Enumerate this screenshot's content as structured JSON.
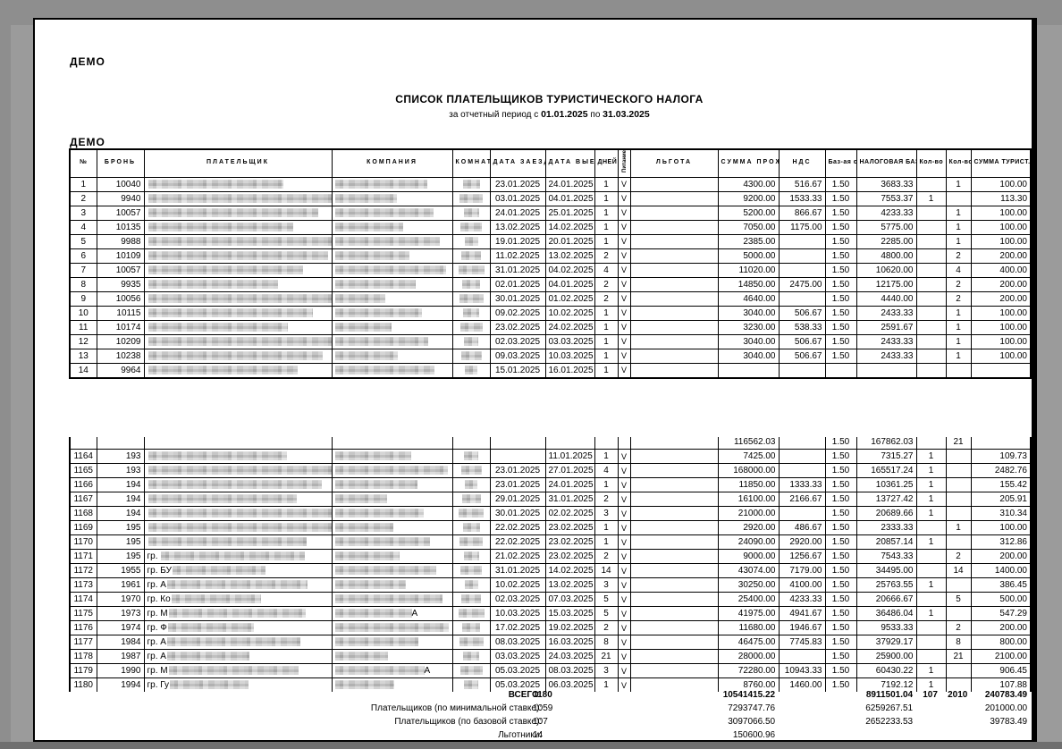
{
  "page": {
    "demo_top": "ДЕМО",
    "demo_table": "ДЕМО",
    "title": "СПИСОК ПЛАТЕЛЬЩИКОВ ТУРИСТИЧЕСКОГО НАЛОГА",
    "period_prefix": "за отчетный период с",
    "period_from": "01.01.2025",
    "period_mid": "по",
    "period_to": "31.03.2025"
  },
  "table": {
    "columns": [
      "№",
      "БРОНЬ",
      "ПЛАТЕЛЬЩИК",
      "КОМПАНИЯ",
      "КОМНАТА",
      "ДАТА\nЗАЕЗДА",
      "ДАТА\nВЫЕЗДА",
      "ДНЕЙ",
      "Питание",
      "ЛЬГОТА",
      "СУММА\nПРОЖИВАНИЯ",
      "НДС",
      "Баз-ая\nставка\n%",
      "НАЛОГОВАЯ\nБАЗА\n(без налогов)",
      "Кол-во\nпо баз.\nставке",
      "Кол-во\nпо мин\nставке",
      "СУММА\nТУРИСТ.\nНАЛОГА"
    ]
  },
  "rows_top": [
    {
      "n": "1",
      "bk": "10040",
      "pp": "",
      "cs": "",
      "in": "23.01.2025",
      "out": "24.01.2025",
      "d": "1",
      "m": "V",
      "ex": "",
      "stay": "4300.00",
      "vat": "516.67",
      "rate": "1.50",
      "base": "3683.33",
      "cb": "",
      "cm": "1",
      "tax": "100.00"
    },
    {
      "n": "2",
      "bk": "9940",
      "pp": "",
      "cs": "",
      "in": "03.01.2025",
      "out": "04.01.2025",
      "d": "1",
      "m": "V",
      "ex": "",
      "stay": "9200.00",
      "vat": "1533.33",
      "rate": "1.50",
      "base": "7553.37",
      "cb": "1",
      "cm": "",
      "tax": "113.30"
    },
    {
      "n": "3",
      "bk": "10057",
      "pp": "",
      "cs": "",
      "in": "24.01.2025",
      "out": "25.01.2025",
      "d": "1",
      "m": "V",
      "ex": "",
      "stay": "5200.00",
      "vat": "866.67",
      "rate": "1.50",
      "base": "4233.33",
      "cb": "",
      "cm": "1",
      "tax": "100.00"
    },
    {
      "n": "4",
      "bk": "10135",
      "pp": "",
      "cs": "",
      "in": "13.02.2025",
      "out": "14.02.2025",
      "d": "1",
      "m": "V",
      "ex": "",
      "stay": "7050.00",
      "vat": "1175.00",
      "rate": "1.50",
      "base": "5775.00",
      "cb": "",
      "cm": "1",
      "tax": "100.00"
    },
    {
      "n": "5",
      "bk": "9988",
      "pp": "",
      "cs": "",
      "in": "19.01.2025",
      "out": "20.01.2025",
      "d": "1",
      "m": "V",
      "ex": "",
      "stay": "2385.00",
      "vat": "",
      "rate": "1.50",
      "base": "2285.00",
      "cb": "",
      "cm": "1",
      "tax": "100.00"
    },
    {
      "n": "6",
      "bk": "10109",
      "pp": "",
      "cs": "",
      "in": "11.02.2025",
      "out": "13.02.2025",
      "d": "2",
      "m": "V",
      "ex": "",
      "stay": "5000.00",
      "vat": "",
      "rate": "1.50",
      "base": "4800.00",
      "cb": "",
      "cm": "2",
      "tax": "200.00"
    },
    {
      "n": "7",
      "bk": "10057",
      "pp": "",
      "cs": "",
      "in": "31.01.2025",
      "out": "04.02.2025",
      "d": "4",
      "m": "V",
      "ex": "",
      "stay": "11020.00",
      "vat": "",
      "rate": "1.50",
      "base": "10620.00",
      "cb": "",
      "cm": "4",
      "tax": "400.00"
    },
    {
      "n": "8",
      "bk": "9935",
      "pp": "",
      "cs": "",
      "in": "02.01.2025",
      "out": "04.01.2025",
      "d": "2",
      "m": "V",
      "ex": "",
      "stay": "14850.00",
      "vat": "2475.00",
      "rate": "1.50",
      "base": "12175.00",
      "cb": "",
      "cm": "2",
      "tax": "200.00"
    },
    {
      "n": "9",
      "bk": "10056",
      "pp": "",
      "cs": "",
      "in": "30.01.2025",
      "out": "01.02.2025",
      "d": "2",
      "m": "V",
      "ex": "",
      "stay": "4640.00",
      "vat": "",
      "rate": "1.50",
      "base": "4440.00",
      "cb": "",
      "cm": "2",
      "tax": "200.00"
    },
    {
      "n": "10",
      "bk": "10115",
      "pp": "",
      "cs": "",
      "in": "09.02.2025",
      "out": "10.02.2025",
      "d": "1",
      "m": "V",
      "ex": "",
      "stay": "3040.00",
      "vat": "506.67",
      "rate": "1.50",
      "base": "2433.33",
      "cb": "",
      "cm": "1",
      "tax": "100.00"
    },
    {
      "n": "11",
      "bk": "10174",
      "pp": "",
      "cs": "",
      "in": "23.02.2025",
      "out": "24.02.2025",
      "d": "1",
      "m": "V",
      "ex": "",
      "stay": "3230.00",
      "vat": "538.33",
      "rate": "1.50",
      "base": "2591.67",
      "cb": "",
      "cm": "1",
      "tax": "100.00"
    },
    {
      "n": "12",
      "bk": "10209",
      "pp": "",
      "cs": "",
      "in": "02.03.2025",
      "out": "03.03.2025",
      "d": "1",
      "m": "V",
      "ex": "",
      "stay": "3040.00",
      "vat": "506.67",
      "rate": "1.50",
      "base": "2433.33",
      "cb": "",
      "cm": "1",
      "tax": "100.00"
    },
    {
      "n": "13",
      "bk": "10238",
      "pp": "",
      "cs": "",
      "in": "09.03.2025",
      "out": "10.03.2025",
      "d": "1",
      "m": "V",
      "ex": "",
      "stay": "3040.00",
      "vat": "506.67",
      "rate": "1.50",
      "base": "2433.33",
      "cb": "",
      "cm": "1",
      "tax": "100.00"
    },
    {
      "n": "14",
      "bk": "9964",
      "pp": "",
      "cs": "",
      "in": "15.01.2025",
      "out": "16.01.2025",
      "d": "1",
      "m": "V",
      "ex": "",
      "stay": "",
      "vat": "",
      "rate": "",
      "base": "",
      "cb": "",
      "cm": "",
      "tax": ""
    }
  ],
  "partial_row": {
    "n": "",
    "bk": "",
    "pp": "",
    "cs": "",
    "in": "",
    "out": "",
    "d": "",
    "m": "",
    "ex": "",
    "stay": "116562.03",
    "vat": "",
    "rate": "1.50",
    "base": "167862.03",
    "cb": "",
    "cm": "21",
    "tax": "",
    "pr": false,
    "cr": false,
    "rr": false
  },
  "rows_bottom": [
    {
      "n": "1164",
      "bk": "193",
      "pp": "",
      "cs": "",
      "in": "",
      "out": "11.01.2025",
      "d": "1",
      "m": "V",
      "ex": "",
      "stay": "7425.00",
      "vat": "",
      "rate": "1.50",
      "base": "7315.27",
      "cb": "1",
      "cm": "",
      "tax": "109.73"
    },
    {
      "n": "1165",
      "bk": "193",
      "pp": "",
      "cs": "",
      "in": "23.01.2025",
      "out": "27.01.2025",
      "d": "4",
      "m": "V",
      "ex": "",
      "stay": "168000.00",
      "vat": "",
      "rate": "1.50",
      "base": "165517.24",
      "cb": "1",
      "cm": "",
      "tax": "2482.76"
    },
    {
      "n": "1166",
      "bk": "194",
      "pp": "",
      "cs": "",
      "in": "23.01.2025",
      "out": "24.01.2025",
      "d": "1",
      "m": "V",
      "ex": "",
      "stay": "11850.00",
      "vat": "1333.33",
      "rate": "1.50",
      "base": "10361.25",
      "cb": "1",
      "cm": "",
      "tax": "155.42"
    },
    {
      "n": "1167",
      "bk": "194",
      "pp": "",
      "cs": "",
      "in": "29.01.2025",
      "out": "31.01.2025",
      "d": "2",
      "m": "V",
      "ex": "",
      "stay": "16100.00",
      "vat": "2166.67",
      "rate": "1.50",
      "base": "13727.42",
      "cb": "1",
      "cm": "",
      "tax": "205.91"
    },
    {
      "n": "1168",
      "bk": "194",
      "pp": "",
      "cs": "",
      "in": "30.01.2025",
      "out": "02.02.2025",
      "d": "3",
      "m": "V",
      "ex": "",
      "stay": "21000.00",
      "vat": "",
      "rate": "1.50",
      "base": "20689.66",
      "cb": "1",
      "cm": "",
      "tax": "310.34"
    },
    {
      "n": "1169",
      "bk": "195",
      "pp": "",
      "cs": "",
      "in": "22.02.2025",
      "out": "23.02.2025",
      "d": "1",
      "m": "V",
      "ex": "",
      "stay": "2920.00",
      "vat": "486.67",
      "rate": "1.50",
      "base": "2333.33",
      "cb": "",
      "cm": "1",
      "tax": "100.00"
    },
    {
      "n": "1170",
      "bk": "195",
      "pp": "",
      "cs": "",
      "in": "22.02.2025",
      "out": "23.02.2025",
      "d": "1",
      "m": "V",
      "ex": "",
      "stay": "24090.00",
      "vat": "2920.00",
      "rate": "1.50",
      "base": "20857.14",
      "cb": "1",
      "cm": "",
      "tax": "312.86"
    },
    {
      "n": "1171",
      "bk": "195",
      "pp": "гр. ",
      "cs": "",
      "in": "21.02.2025",
      "out": "23.02.2025",
      "d": "2",
      "m": "V",
      "ex": "",
      "stay": "9000.00",
      "vat": "1256.67",
      "rate": "1.50",
      "base": "7543.33",
      "cb": "",
      "cm": "2",
      "tax": "200.00"
    },
    {
      "n": "1172",
      "bk": "1955",
      "pp": "гр. БУ",
      "cs": "",
      "in": "31.01.2025",
      "out": "14.02.2025",
      "d": "14",
      "m": "V",
      "ex": "",
      "stay": "43074.00",
      "vat": "7179.00",
      "rate": "1.50",
      "base": "34495.00",
      "cb": "",
      "cm": "14",
      "tax": "1400.00"
    },
    {
      "n": "1173",
      "bk": "1961",
      "pp": "гр. А",
      "cs": "",
      "in": "10.02.2025",
      "out": "13.02.2025",
      "d": "3",
      "m": "V",
      "ex": "",
      "stay": "30250.00",
      "vat": "4100.00",
      "rate": "1.50",
      "base": "25763.55",
      "cb": "1",
      "cm": "",
      "tax": "386.45"
    },
    {
      "n": "1174",
      "bk": "1970",
      "pp": "гр. Ко",
      "cs": "",
      "in": "02.03.2025",
      "out": "07.03.2025",
      "d": "5",
      "m": "V",
      "ex": "",
      "stay": "25400.00",
      "vat": "4233.33",
      "rate": "1.50",
      "base": "20666.67",
      "cb": "",
      "cm": "5",
      "tax": "500.00"
    },
    {
      "n": "1175",
      "bk": "1973",
      "pp": "гр. М",
      "cs": "А",
      "in": "10.03.2025",
      "out": "15.03.2025",
      "d": "5",
      "m": "V",
      "ex": "",
      "stay": "41975.00",
      "vat": "4941.67",
      "rate": "1.50",
      "base": "36486.04",
      "cb": "1",
      "cm": "",
      "tax": "547.29"
    },
    {
      "n": "1176",
      "bk": "1974",
      "pp": "гр. Ф",
      "cs": "",
      "in": "17.02.2025",
      "out": "19.02.2025",
      "d": "2",
      "m": "V",
      "ex": "",
      "stay": "11680.00",
      "vat": "1946.67",
      "rate": "1.50",
      "base": "9533.33",
      "cb": "",
      "cm": "2",
      "tax": "200.00"
    },
    {
      "n": "1177",
      "bk": "1984",
      "pp": "гр. А",
      "cs": "",
      "in": "08.03.2025",
      "out": "16.03.2025",
      "d": "8",
      "m": "V",
      "ex": "",
      "stay": "46475.00",
      "vat": "7745.83",
      "rate": "1.50",
      "base": "37929.17",
      "cb": "",
      "cm": "8",
      "tax": "800.00"
    },
    {
      "n": "1178",
      "bk": "1987",
      "pp": "гр. А",
      "cs": "",
      "in": "03.03.2025",
      "out": "24.03.2025",
      "d": "21",
      "m": "V",
      "ex": "",
      "stay": "28000.00",
      "vat": "",
      "rate": "1.50",
      "base": "25900.00",
      "cb": "",
      "cm": "21",
      "tax": "2100.00"
    },
    {
      "n": "1179",
      "bk": "1990",
      "pp": "гр. М",
      "cs": "А",
      "in": "05.03.2025",
      "out": "08.03.2025",
      "d": "3",
      "m": "V",
      "ex": "",
      "stay": "72280.00",
      "vat": "10943.33",
      "rate": "1.50",
      "base": "60430.22",
      "cb": "1",
      "cm": "",
      "tax": "906.45"
    },
    {
      "n": "1180",
      "bk": "1994",
      "pp": "гр. Гу",
      "cs": "",
      "in": "05.03.2025",
      "out": "06.03.2025",
      "d": "1",
      "m": "V",
      "ex": "",
      "stay": "8760.00",
      "vat": "1460.00",
      "rate": "1.50",
      "base": "7192.12",
      "cb": "1",
      "cm": "",
      "tax": "107.88"
    }
  ],
  "totals": [
    {
      "label": "ВСЕГО:",
      "count": "1180",
      "stay": "10541415.22",
      "vat": "",
      "base": "8911501.04",
      "cnt_base": "107",
      "cnt_min": "2010",
      "tax": "240783.49"
    },
    {
      "label": "Плательщиков (по минимальной ставке):",
      "count": "1059",
      "stay": "7293747.76",
      "vat": "",
      "base": "6259267.51",
      "cnt_base": "",
      "cnt_min": "",
      "tax": "201000.00"
    },
    {
      "label": "Плательщиков (по базовой ставке):",
      "count": "107",
      "stay": "3097066.50",
      "vat": "",
      "base": "2652233.53",
      "cnt_base": "",
      "cnt_min": "",
      "tax": "39783.49"
    },
    {
      "label": "Льготники:",
      "count": "14",
      "stay": "150600.96",
      "vat": "",
      "base": "",
      "cnt_base": "",
      "cnt_min": "",
      "tax": ""
    }
  ]
}
